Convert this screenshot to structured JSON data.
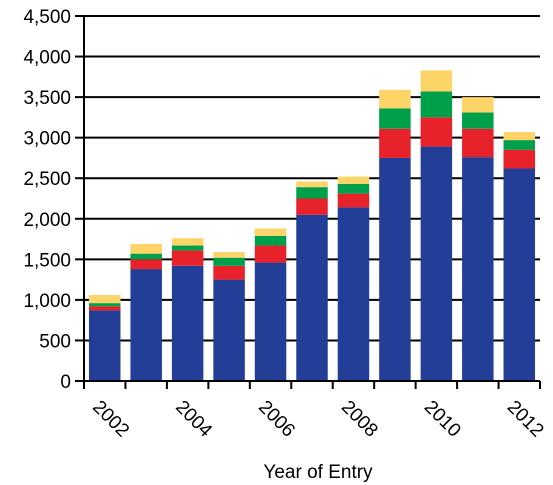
{
  "chart_data": {
    "type": "bar",
    "stacked": true,
    "title": "",
    "xlabel": "Year of Entry",
    "ylabel": "",
    "ylim": [
      0,
      4500
    ],
    "y_ticks": [
      "0",
      "500",
      "1,000",
      "1,500",
      "2,000",
      "2,500",
      "3,000",
      "3,500",
      "4,000",
      "4,500"
    ],
    "x_tick_labels": [
      "2002",
      "2004",
      "2006",
      "2008",
      "2010",
      "2012"
    ],
    "grid": "horizontal",
    "legend": "none",
    "categories": [
      "2002",
      "2003",
      "2004",
      "2005",
      "2006",
      "2007",
      "2008",
      "2009",
      "2010",
      "2011",
      "2012"
    ],
    "series": [
      {
        "color": "#233e97",
        "values": [
          870,
          1380,
          1420,
          1250,
          1460,
          2050,
          2140,
          2750,
          2890,
          2760,
          2620
        ]
      },
      {
        "color": "#e8222a",
        "values": [
          50,
          120,
          190,
          170,
          210,
          200,
          170,
          360,
          360,
          350,
          230
        ]
      },
      {
        "color": "#00a04b",
        "values": [
          40,
          70,
          60,
          100,
          120,
          140,
          120,
          250,
          320,
          200,
          120
        ]
      },
      {
        "color": "#fcd468",
        "values": [
          100,
          120,
          90,
          70,
          90,
          70,
          90,
          230,
          260,
          190,
          100
        ]
      }
    ]
  }
}
